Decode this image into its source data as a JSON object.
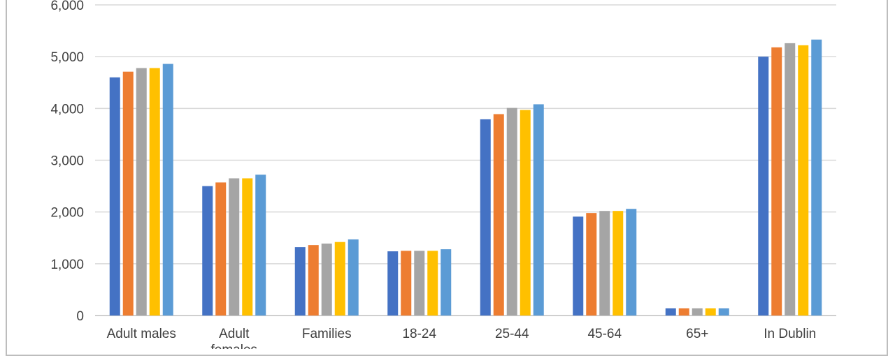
{
  "chart_data": {
    "type": "bar",
    "categories": [
      "Adult males",
      "Adult females",
      "Families",
      "18-24",
      "25-44",
      "45-64",
      "65+",
      "In Dublin"
    ],
    "series": [
      {
        "color": "#4472c4",
        "values": [
          4600,
          2500,
          1320,
          1240,
          3790,
          1910,
          140,
          5000
        ]
      },
      {
        "color": "#ed7d31",
        "values": [
          4710,
          2570,
          1360,
          1250,
          3890,
          1980,
          140,
          5180
        ]
      },
      {
        "color": "#a5a5a5",
        "values": [
          4780,
          2650,
          1390,
          1250,
          4010,
          2020,
          140,
          5260
        ]
      },
      {
        "color": "#ffc000",
        "values": [
          4780,
          2650,
          1420,
          1250,
          3970,
          2020,
          140,
          5220
        ]
      },
      {
        "color": "#5b9bd5",
        "values": [
          4860,
          2720,
          1470,
          1280,
          4080,
          2060,
          140,
          5330
        ]
      }
    ],
    "yticks": [
      "0",
      "1,000",
      "2,000",
      "3,000",
      "4,000",
      "5,000",
      "6,000"
    ],
    "ylim": [
      0,
      6000
    ],
    "grid": true
  }
}
